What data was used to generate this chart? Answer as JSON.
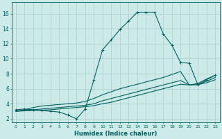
{
  "xlabel": "Humidex (Indice chaleur)",
  "bg_color": "#cceae8",
  "line_color": "#006060",
  "grid_color": "#aacfcc",
  "xlim": [
    -0.5,
    23.5
  ],
  "ylim": [
    1.5,
    17.5
  ],
  "xticks": [
    0,
    1,
    2,
    3,
    4,
    5,
    6,
    7,
    8,
    9,
    10,
    11,
    12,
    13,
    14,
    15,
    16,
    17,
    18,
    19,
    20,
    21,
    22,
    23
  ],
  "yticks": [
    2,
    4,
    6,
    8,
    10,
    12,
    14,
    16
  ],
  "s1_x": [
    0,
    1,
    2,
    3,
    4,
    5,
    6,
    7,
    8,
    9,
    10,
    11,
    12,
    13,
    14,
    15,
    16,
    17,
    18,
    19,
    20,
    21,
    22,
    23
  ],
  "s1_y": [
    3.2,
    3.3,
    3.2,
    3.1,
    3.0,
    2.9,
    2.5,
    2.0,
    3.3,
    7.2,
    11.2,
    12.5,
    13.9,
    15.0,
    16.2,
    16.2,
    16.2,
    13.3,
    11.8,
    9.5,
    9.4,
    6.5,
    7.2,
    7.8
  ],
  "s2_x": [
    0,
    1,
    2,
    3,
    4,
    5,
    6,
    7,
    8,
    9,
    10,
    11,
    12,
    13,
    14,
    15,
    16,
    17,
    18,
    19,
    20,
    21,
    22,
    23
  ],
  "s2_y": [
    3.0,
    3.2,
    3.5,
    3.7,
    3.8,
    3.9,
    4.0,
    4.1,
    4.3,
    4.7,
    5.2,
    5.6,
    6.0,
    6.3,
    6.6,
    6.9,
    7.2,
    7.5,
    7.9,
    8.3,
    6.5,
    6.7,
    7.3,
    7.8
  ],
  "s3_x": [
    0,
    1,
    2,
    3,
    4,
    5,
    6,
    7,
    8,
    9,
    10,
    11,
    12,
    13,
    14,
    15,
    16,
    17,
    18,
    19,
    20,
    21,
    22,
    23
  ],
  "s3_y": [
    3.0,
    3.1,
    3.2,
    3.3,
    3.4,
    3.5,
    3.6,
    3.7,
    3.8,
    4.0,
    4.4,
    4.7,
    5.0,
    5.3,
    5.6,
    5.9,
    6.2,
    6.5,
    6.8,
    7.1,
    6.5,
    6.6,
    7.0,
    7.5
  ],
  "s4_x": [
    0,
    1,
    2,
    3,
    4,
    5,
    6,
    7,
    8,
    9,
    10,
    11,
    12,
    13,
    14,
    15,
    16,
    17,
    18,
    19,
    20,
    21,
    22,
    23
  ],
  "s4_y": [
    3.0,
    3.05,
    3.1,
    3.15,
    3.2,
    3.3,
    3.4,
    3.5,
    3.6,
    3.75,
    4.0,
    4.2,
    4.5,
    4.8,
    5.1,
    5.4,
    5.7,
    6.0,
    6.3,
    6.6,
    6.5,
    6.55,
    6.8,
    7.2
  ]
}
